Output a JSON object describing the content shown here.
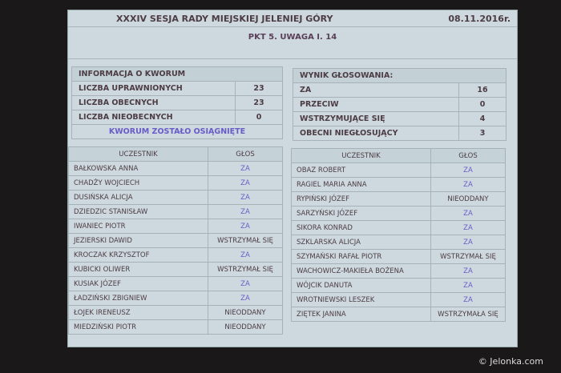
{
  "header": {
    "title": "XXXIV SESJA RADY MIEJSKIEJ JELENIEJ GÓRY",
    "date": "08.11.2016r.",
    "subtitle": "PKT 5. UWAGA I. 14"
  },
  "quorum": {
    "title": "INFORMACJA O KWORUM",
    "rows": [
      {
        "label": "LICZBA UPRAWNIONYCH",
        "value": "23"
      },
      {
        "label": "LICZBA OBECNYCH",
        "value": "23"
      },
      {
        "label": "LICZBA NIEOBECNYCH",
        "value": "0"
      }
    ],
    "status": "KWORUM ZOSTAŁO OSIĄGNIĘTE"
  },
  "result": {
    "title": "WYNIK GŁOSOWANIA:",
    "rows": [
      {
        "label": "ZA",
        "value": "16"
      },
      {
        "label": "PRZECIW",
        "value": "0"
      },
      {
        "label": "WSTRZYMUJĄCE SIĘ",
        "value": "4"
      },
      {
        "label": "OBECNI NIEGŁOSUJĄCY",
        "value": "3"
      }
    ]
  },
  "columns": {
    "participant": "UCZESTNIK",
    "vote": "GŁOS"
  },
  "left_table": [
    [
      "BAŁKOWSKA ANNA",
      "ZA"
    ],
    [
      "CHADŻY WOJCIECH",
      "ZA"
    ],
    [
      "DUSIŃSKA ALICJA",
      "ZA"
    ],
    [
      "DZIEDZIC STANISŁAW",
      "ZA"
    ],
    [
      "IWANIEC PIOTR",
      "ZA"
    ],
    [
      "JEZIERSKI DAWID",
      "WSTRZYMAŁ SIĘ"
    ],
    [
      "KROCZAK KRZYSZTOF",
      "ZA"
    ],
    [
      "KUBICKI OLIWER",
      "WSTRZYMAŁ SIĘ"
    ],
    [
      "KUSIAK JÓZEF",
      "ZA"
    ],
    [
      "ŁADZIŃSKI ZBIGNIEW",
      "ZA"
    ],
    [
      "ŁOJEK IRENEUSZ",
      "NIEODDANY"
    ],
    [
      "MIEDZIŃSKI PIOTR",
      "NIEODDANY"
    ]
  ],
  "right_table": [
    [
      "OBAZ ROBERT",
      "ZA"
    ],
    [
      "RAGIEL MARIA ANNA",
      "ZA"
    ],
    [
      "RYPIŃSKI JÓZEF",
      "NIEODDANY"
    ],
    [
      "SARZYŃSKI JÓZEF",
      "ZA"
    ],
    [
      "SIKORA KONRAD",
      "ZA"
    ],
    [
      "SZKLARSKA ALICJA",
      "ZA"
    ],
    [
      "SZYMAŃSKI RAFAŁ PIOTR",
      "WSTRZYMAŁ SIĘ"
    ],
    [
      "WACHOWICZ-MAKIEŁA BOŻENA",
      "ZA"
    ],
    [
      "WÓJCIK DANUTA",
      "ZA"
    ],
    [
      "WROTNIEWSKI LESZEK",
      "ZA"
    ],
    [
      "ZIĘTEK JANINA",
      "WSTRZYMAŁA SIĘ"
    ]
  ],
  "watermark": "© Jelonka.com"
}
